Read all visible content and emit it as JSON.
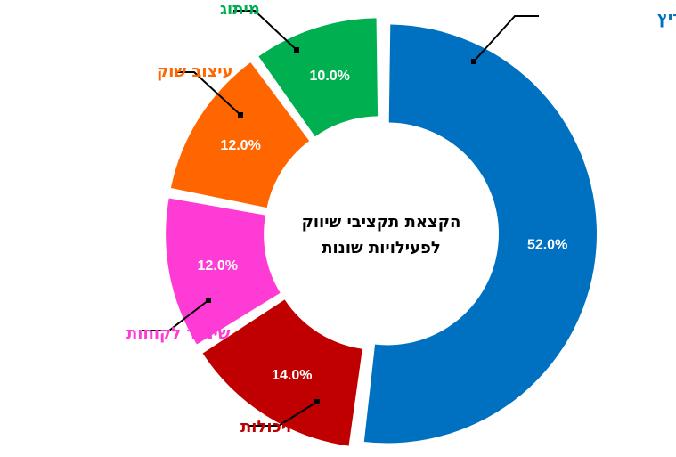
{
  "chart_data": {
    "type": "pie",
    "subtype": "doughnut",
    "title": "הקצאת תקציבי שיווק\nלפעילויות שונות",
    "categories": [
      "שיווק ממריץ",
      "תשתית ויכולות",
      "שימור לקוחות",
      "עיצוב שוק",
      "מיתוג"
    ],
    "values": [
      52.0,
      14.0,
      12.0,
      12.0,
      10.0
    ],
    "value_labels": [
      "52.0%",
      "14.0%",
      "12.0%",
      "12.0%",
      "10.0%"
    ],
    "colors": [
      "#0070C0",
      "#C00000",
      "#FF3BD5",
      "#FF6600",
      "#00B050"
    ],
    "legend": "none"
  },
  "center_title_lines": [
    "הקצאת תקציבי שיווק",
    "לפעילויות שונות"
  ]
}
